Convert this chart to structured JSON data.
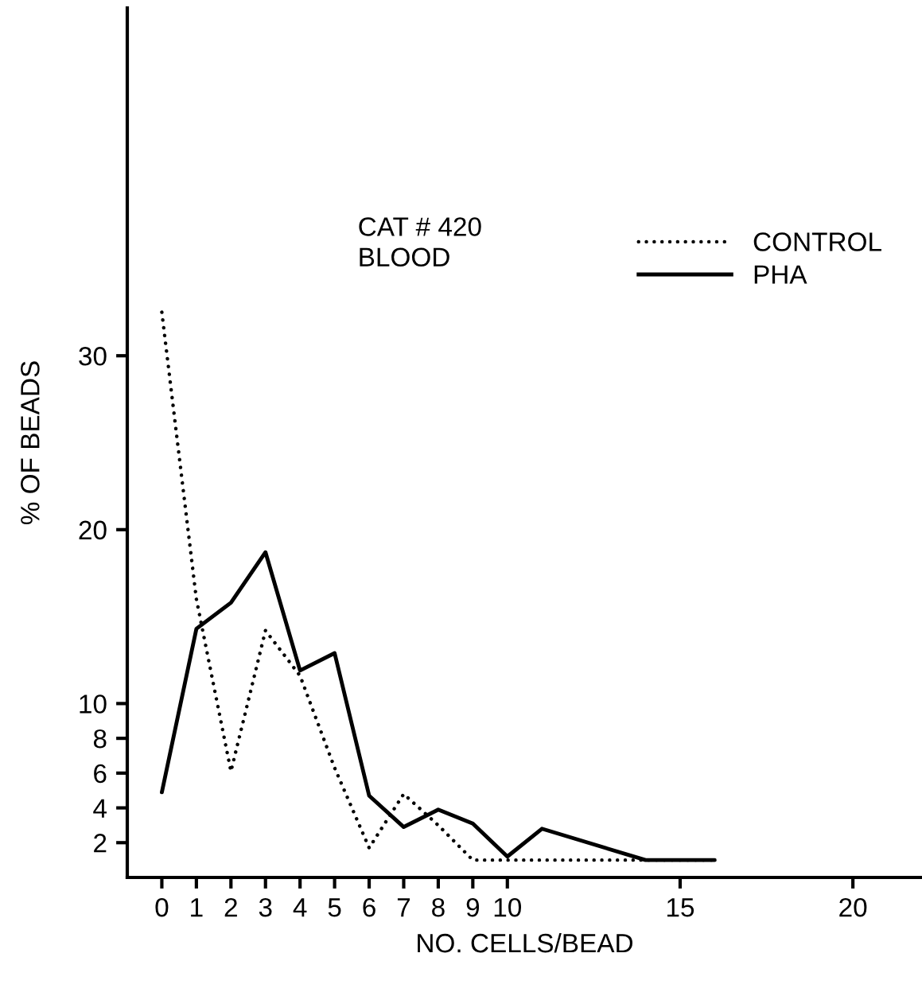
{
  "chart_data": {
    "type": "line",
    "xlabel": "NO. CELLS/BEAD",
    "ylabel": "% OF BEADS",
    "annotations": [
      "CAT # 420\nBLOOD"
    ],
    "series": [
      {
        "name": "CONTROL",
        "color": "#000000",
        "line_style": "dotted",
        "x": [
          0,
          1,
          2,
          3,
          4,
          5,
          6,
          7,
          8,
          9,
          10,
          11,
          12,
          13,
          14,
          15,
          16
        ],
        "values": [
          32.5,
          16.0,
          6.1,
          14.2,
          11.6,
          6.3,
          1.7,
          4.8,
          3.0,
          1.0,
          1.0,
          1.0,
          1.0,
          1.0,
          1.0,
          1.0,
          1.0
        ]
      },
      {
        "name": "PHA",
        "color": "#000000",
        "line_style": "solid",
        "x": [
          0,
          1,
          2,
          3,
          4,
          5,
          6,
          7,
          8,
          9,
          10,
          11,
          14,
          16
        ],
        "values": [
          4.9,
          14.3,
          15.8,
          18.7,
          11.9,
          12.9,
          4.7,
          2.9,
          3.9,
          3.1,
          1.2,
          2.8,
          1.0,
          1.0
        ]
      }
    ],
    "xlim": [
      -1,
      22
    ],
    "xticks": [
      0,
      1,
      2,
      3,
      4,
      5,
      6,
      7,
      8,
      9,
      10,
      15,
      20
    ],
    "ylim": [
      0,
      50
    ],
    "yticks": [
      2,
      4,
      6,
      8,
      10,
      20,
      30
    ],
    "grid": false,
    "legend": "top right",
    "marker": "none"
  }
}
